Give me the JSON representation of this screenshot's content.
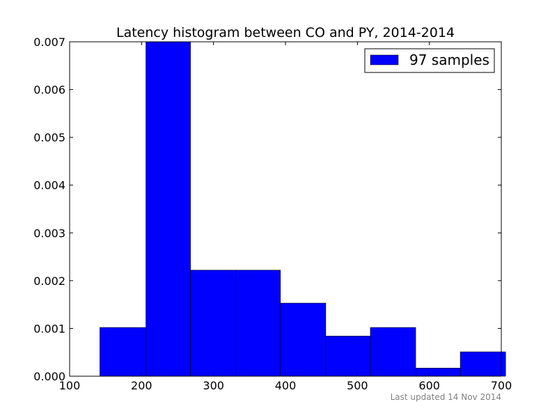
{
  "chart_data": {
    "type": "bar",
    "title": "Latency histogram between CO and PY, 2014-2014",
    "xlabel": "",
    "ylabel": "",
    "xlim": [
      100,
      700
    ],
    "ylim": [
      0,
      0.007
    ],
    "x_ticks": [
      "100",
      "200",
      "300",
      "400",
      "500",
      "600",
      "700"
    ],
    "y_ticks": [
      "0.000",
      "0.001",
      "0.002",
      "0.003",
      "0.004",
      "0.005",
      "0.006",
      "0.007"
    ],
    "bins": [
      {
        "start": 142,
        "end": 206,
        "value": 0.00102
      },
      {
        "start": 206,
        "end": 268,
        "value": 0.007
      },
      {
        "start": 268,
        "end": 331,
        "value": 0.00222
      },
      {
        "start": 331,
        "end": 393,
        "value": 0.00222
      },
      {
        "start": 393,
        "end": 456,
        "value": 0.00153
      },
      {
        "start": 456,
        "end": 518,
        "value": 0.00084
      },
      {
        "start": 518,
        "end": 581,
        "value": 0.00102
      },
      {
        "start": 581,
        "end": 643,
        "value": 0.00017
      },
      {
        "start": 643,
        "end": 706,
        "value": 0.00051
      }
    ],
    "series": [
      {
        "name": "97 samples",
        "color": "#0000ff"
      }
    ],
    "legend_position": "top-right",
    "grid": false
  },
  "footer": {
    "text": "Last updated 14 Nov 2014"
  }
}
